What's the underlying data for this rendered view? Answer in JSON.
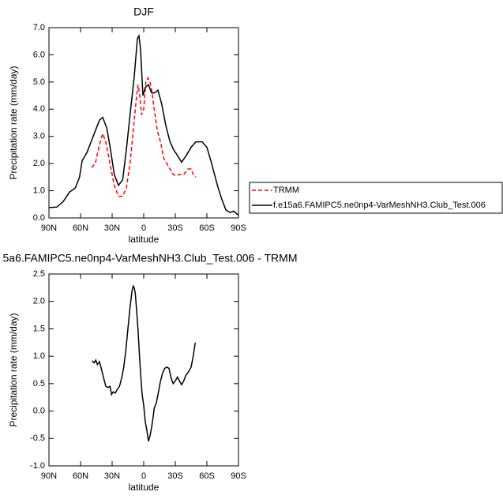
{
  "chart_data": [
    {
      "type": "line",
      "title": "DJF",
      "xlabel": "latitude",
      "ylabel": "Precipitation rate (mm/day)",
      "xlim": [
        90,
        -90
      ],
      "xticks": [
        {
          "value": 90,
          "label": "90N"
        },
        {
          "value": 60,
          "label": "60N"
        },
        {
          "value": 30,
          "label": "30N"
        },
        0,
        {
          "value": -30,
          "label": "30S"
        },
        {
          "value": -60,
          "label": "60S"
        },
        {
          "value": -90,
          "label": "90S"
        }
      ],
      "ylim": [
        0,
        7
      ],
      "yticks": [
        {
          "value": 0,
          "label": "0.0"
        },
        {
          "value": 1,
          "label": "1.0"
        },
        {
          "value": 2,
          "label": "2.0"
        },
        {
          "value": 3,
          "label": "3.0"
        },
        {
          "value": 4,
          "label": "4.0"
        },
        {
          "value": 5,
          "label": "5.0"
        },
        {
          "value": 6,
          "label": "6.0"
        },
        {
          "value": 7,
          "label": "7.0"
        }
      ],
      "legend": "outside-right",
      "series": [
        {
          "name": "TRMM",
          "color": "#ff0000",
          "line_style": "dashed",
          "x": [
            49.5,
            46,
            42,
            39,
            36,
            32,
            28,
            24,
            20,
            16.5,
            13,
            10,
            7,
            5.5,
            4,
            2,
            0,
            -2,
            -4,
            -6,
            -8,
            -10,
            -13,
            -16,
            -19,
            -22,
            -25,
            -28,
            -31,
            -34,
            -38,
            -42,
            -45,
            -47,
            -49.5
          ],
          "values": [
            1.85,
            2.0,
            2.7,
            3.1,
            2.8,
            2.0,
            1.2,
            0.8,
            0.8,
            1.1,
            2.0,
            3.2,
            4.4,
            4.9,
            4.6,
            3.8,
            4.0,
            5.0,
            5.15,
            5.0,
            4.6,
            4.0,
            3.2,
            2.8,
            2.2,
            2.0,
            1.8,
            1.6,
            1.55,
            1.6,
            1.6,
            1.8,
            1.8,
            1.6,
            1.5
          ]
        },
        {
          "name": "f.e15a6.FAMIPC5.ne0np4-VarMeshNH3.Club_Test.006",
          "color": "#000000",
          "line_style": "solid",
          "x": [
            90,
            82.5,
            76.5,
            70.5,
            65,
            61,
            58.5,
            54,
            50,
            46,
            42,
            39,
            35,
            31.5,
            28,
            24,
            20,
            16.5,
            13,
            9,
            6,
            4.5,
            3,
            0.75,
            -1.5,
            -4.5,
            -7.5,
            -10.5,
            -13.5,
            -17,
            -21,
            -25,
            -28.5,
            -32,
            -36,
            -40.5,
            -45,
            -49.5,
            -55.5,
            -60,
            -64.5,
            -70,
            -74,
            -78,
            -82,
            -85.5,
            -90
          ],
          "values": [
            0.38,
            0.4,
            0.6,
            0.95,
            1.1,
            1.5,
            2.1,
            2.4,
            2.8,
            3.2,
            3.6,
            3.7,
            3.3,
            2.5,
            1.6,
            1.2,
            1.4,
            2.5,
            3.8,
            5.2,
            6.6,
            6.7,
            6.2,
            4.5,
            4.8,
            4.9,
            4.6,
            4.6,
            4.7,
            4.2,
            3.4,
            2.8,
            2.5,
            2.3,
            2.05,
            2.3,
            2.6,
            2.8,
            2.8,
            2.6,
            2.0,
            1.2,
            0.7,
            0.3,
            0.2,
            0.25,
            0.1
          ]
        }
      ]
    },
    {
      "type": "line",
      "title": "5a6.FAMIPC5.ne0np4-VarMeshNH3.Club_Test.006 - TRMM",
      "xlabel": "latitude",
      "ylabel": "Precipitation rate (mm/day)",
      "xlim": [
        90,
        -90
      ],
      "xticks": [
        {
          "value": 90,
          "label": "90N"
        },
        {
          "value": 60,
          "label": "60N"
        },
        {
          "value": 30,
          "label": "30N"
        },
        0,
        {
          "value": -30,
          "label": "30S"
        },
        {
          "value": -60,
          "label": "60S"
        },
        {
          "value": -90,
          "label": "90S"
        }
      ],
      "ylim": [
        -1,
        2.5
      ],
      "yticks": [
        {
          "value": -1,
          "label": "-1.0"
        },
        -0.5,
        {
          "value": 0,
          "label": "0.0"
        },
        0.5,
        {
          "value": 1,
          "label": "1.0"
        },
        1.5,
        {
          "value": 2,
          "label": "2.0"
        },
        2.5
      ],
      "series": [
        {
          "color": "#000000",
          "line_style": "solid",
          "x": [
            49,
            47,
            45.5,
            44,
            42,
            40,
            38,
            36,
            34,
            32,
            30.5,
            29,
            27,
            25,
            23,
            21,
            19,
            17,
            15,
            13,
            11,
            10,
            9,
            8,
            7,
            5.5,
            4,
            3,
            1.5,
            0,
            -1.5,
            -3,
            -4.5,
            -6,
            -7.5,
            -9,
            -10,
            -12,
            -14,
            -16,
            -18,
            -20,
            -22,
            -24,
            -26,
            -28,
            -30,
            -32,
            -34,
            -36,
            -38,
            -40,
            -42,
            -45,
            -47,
            -49
          ],
          "values": [
            0.92,
            0.88,
            0.93,
            0.85,
            0.9,
            0.75,
            0.6,
            0.45,
            0.43,
            0.45,
            0.3,
            0.35,
            0.33,
            0.4,
            0.45,
            0.6,
            0.8,
            1.1,
            1.5,
            1.9,
            2.2,
            2.28,
            2.25,
            2.15,
            1.9,
            1.5,
            1.0,
            0.7,
            0.3,
            0.1,
            -0.2,
            -0.35,
            -0.55,
            -0.45,
            -0.3,
            -0.1,
            0.05,
            0.15,
            0.35,
            0.55,
            0.7,
            0.78,
            0.8,
            0.78,
            0.6,
            0.5,
            0.55,
            0.62,
            0.55,
            0.48,
            0.55,
            0.65,
            0.7,
            0.8,
            1.0,
            1.25
          ]
        }
      ]
    }
  ]
}
